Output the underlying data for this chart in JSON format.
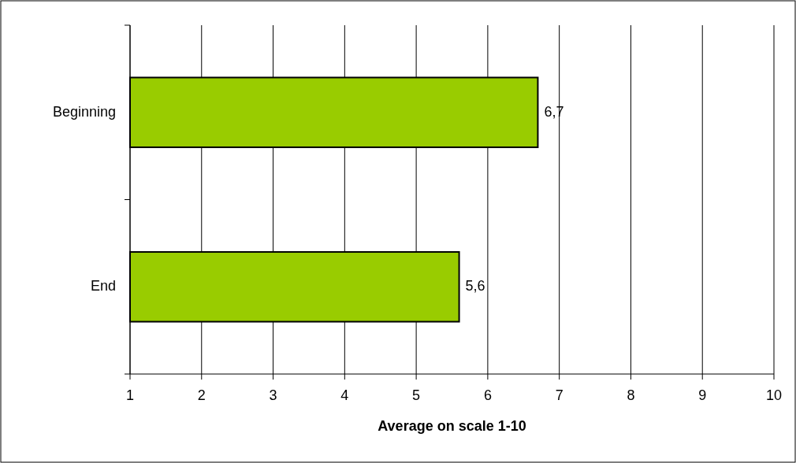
{
  "chart_data": {
    "type": "bar",
    "orientation": "horizontal",
    "xlabel": "Average on scale 1-10",
    "categories": [
      "Beginning",
      "End"
    ],
    "values": [
      6.7,
      5.6
    ],
    "color": "#99cc00",
    "value_labels": [
      "6,7",
      "5,6"
    ],
    "xlim": [
      1,
      10
    ],
    "xticks": [
      1,
      2,
      3,
      4,
      5,
      6,
      7,
      8,
      9,
      10
    ],
    "grid": "x"
  }
}
